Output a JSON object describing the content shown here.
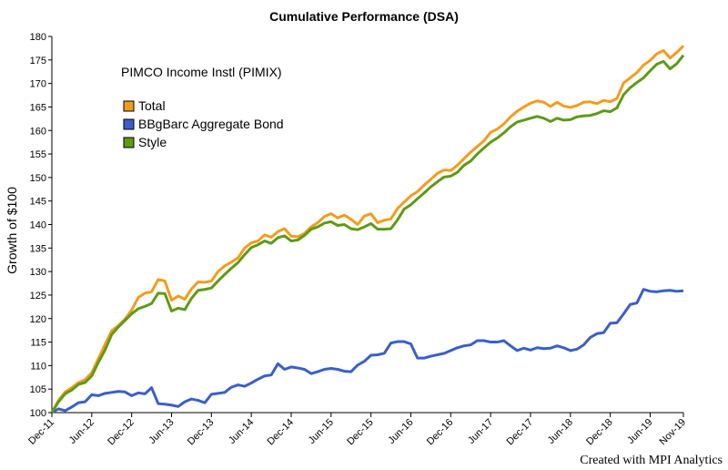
{
  "chart_data": {
    "type": "line",
    "title": "Cumulative Performance (DSA)",
    "ylabel": "Growth of $100",
    "xlabel": "",
    "fund_name": "PIMCO Income Instl (PIMIX)",
    "ylim": [
      100,
      180
    ],
    "yticks": [
      100,
      105,
      110,
      115,
      120,
      125,
      130,
      135,
      140,
      145,
      150,
      155,
      160,
      165,
      170,
      175,
      180
    ],
    "x_labels": [
      "Dec-11",
      "Jun-12",
      "Dec-12",
      "Jun-13",
      "Dec-13",
      "Jun-14",
      "Dec-14",
      "Jun-15",
      "Dec-15",
      "Jun-16",
      "Dec-16",
      "Jun-17",
      "Dec-17",
      "Jun-18",
      "Dec-18",
      "Jun-19",
      "Nov-19"
    ],
    "x_label_months": [
      0,
      6,
      12,
      18,
      24,
      30,
      36,
      42,
      48,
      54,
      60,
      66,
      72,
      78,
      84,
      90,
      95
    ],
    "n_months": 96,
    "legend_position": "top-left",
    "grid": false,
    "series": [
      {
        "name": "Total",
        "color": "#F39C1C",
        "values": [
          100.0,
          102.6,
          104.4,
          105.3,
          106.4,
          107.0,
          108.5,
          111.5,
          114.5,
          117.4,
          118.5,
          119.9,
          121.8,
          124.5,
          125.4,
          125.7,
          128.3,
          128.0,
          123.9,
          124.8,
          124.1,
          126.3,
          127.8,
          127.7,
          128.0,
          130.0,
          131.2,
          132.0,
          132.9,
          135.0,
          136.1,
          136.5,
          137.8,
          137.3,
          138.5,
          139.1,
          137.5,
          137.4,
          138.1,
          139.5,
          140.4,
          141.7,
          142.3,
          141.4,
          142.0,
          141.1,
          140.0,
          141.8,
          142.3,
          140.4,
          140.9,
          141.2,
          143.4,
          144.8,
          146.1,
          147.0,
          148.4,
          149.6,
          150.9,
          151.6,
          151.5,
          152.6,
          154.0,
          155.4,
          156.6,
          157.8,
          159.6,
          160.3,
          161.4,
          162.9,
          164.1,
          165.0,
          165.8,
          166.3,
          166.0,
          165.1,
          166.0,
          165.2,
          164.9,
          165.3,
          166.0,
          166.1,
          165.7,
          166.4,
          166.1,
          166.8,
          170.1,
          171.2,
          172.3,
          173.9,
          174.9,
          176.3,
          177.0,
          175.4,
          176.6,
          178.0
        ]
      },
      {
        "name": "BBgBarc Aggregate Bond",
        "color": "#3A5FC8",
        "values": [
          100.0,
          100.8,
          100.4,
          101.2,
          102.1,
          102.3,
          103.8,
          103.6,
          104.1,
          104.3,
          104.5,
          104.4,
          103.6,
          104.2,
          104.0,
          105.3,
          101.9,
          101.8,
          101.6,
          101.3,
          102.3,
          102.9,
          102.6,
          102.1,
          103.9,
          104.1,
          104.3,
          105.4,
          105.9,
          105.6,
          106.3,
          107.1,
          107.8,
          108.0,
          110.4,
          109.2,
          109.7,
          109.5,
          109.2,
          108.3,
          108.7,
          109.2,
          109.4,
          109.2,
          108.8,
          108.7,
          110.1,
          110.9,
          112.2,
          112.3,
          112.6,
          114.8,
          115.1,
          115.1,
          114.6,
          111.6,
          111.6,
          112.0,
          112.3,
          112.6,
          113.2,
          113.8,
          114.2,
          114.4,
          115.3,
          115.3,
          115.0,
          115.0,
          115.3,
          114.2,
          113.2,
          113.7,
          113.3,
          113.8,
          113.6,
          113.7,
          114.2,
          113.8,
          113.2,
          113.5,
          114.4,
          116.0,
          116.8,
          117.0,
          119.0,
          119.1,
          121.0,
          123.0,
          123.3,
          126.2,
          125.8,
          125.7,
          125.9,
          126.0,
          125.8,
          125.9
        ]
      },
      {
        "name": "Style",
        "color": "#5E9A17",
        "values": [
          100.0,
          102.3,
          104.0,
          104.8,
          106.0,
          106.4,
          107.8,
          110.7,
          113.3,
          116.6,
          118.2,
          119.6,
          121.0,
          122.1,
          122.6,
          123.2,
          125.4,
          125.3,
          121.6,
          122.2,
          121.9,
          124.3,
          126.0,
          126.2,
          126.5,
          128.0,
          129.4,
          130.7,
          131.9,
          133.6,
          135.1,
          135.7,
          136.5,
          136.0,
          137.2,
          137.6,
          136.5,
          136.7,
          137.7,
          139.0,
          139.5,
          140.3,
          140.6,
          139.8,
          140.0,
          139.1,
          138.9,
          139.5,
          140.2,
          139.0,
          139.0,
          139.1,
          141.0,
          143.3,
          144.2,
          145.5,
          146.7,
          148.0,
          149.1,
          150.1,
          150.3,
          151.1,
          152.6,
          153.5,
          155.0,
          156.3,
          157.5,
          158.4,
          159.5,
          160.8,
          161.8,
          162.2,
          162.6,
          163.0,
          162.6,
          161.9,
          162.6,
          162.2,
          162.3,
          162.9,
          163.1,
          163.2,
          163.6,
          164.2,
          164.0,
          164.8,
          167.6,
          169.1,
          170.2,
          171.2,
          172.7,
          174.1,
          174.7,
          173.1,
          174.2,
          176.0
        ]
      }
    ]
  },
  "footer": {
    "credit": "Created with MPI Analytics"
  }
}
